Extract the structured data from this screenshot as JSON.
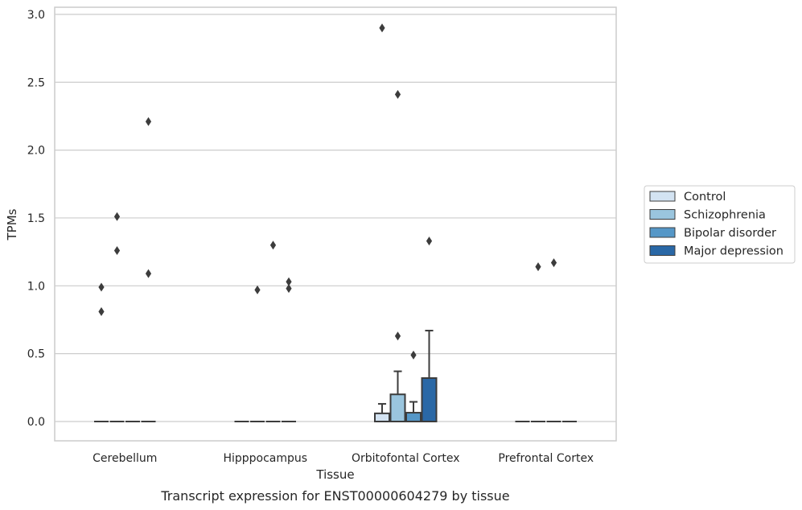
{
  "chart_data": {
    "type": "box",
    "xlabel": "Tissue",
    "ylabel": "TPMs",
    "caption": "Transcript expression for ENST00000604279 by tissue",
    "ylim": [
      -0.14,
      3.05
    ],
    "yticks": [
      0.0,
      0.5,
      1.0,
      1.5,
      2.0,
      2.5,
      3.0
    ],
    "ytick_labels": [
      "0.0",
      "0.5",
      "1.0",
      "1.5",
      "2.0",
      "2.5",
      "3.0"
    ],
    "grid": true,
    "legend_placement": "right",
    "categories": [
      "Cerebellum",
      "Hipppocampus",
      "Orbitofontal Cortex",
      "Prefrontal Cortex"
    ],
    "series": [
      {
        "name": "Control",
        "color": "#d3e3f2",
        "boxes": [
          {
            "q1": 0,
            "median": 0,
            "q3": 0,
            "whisker_low": 0,
            "whisker_high": 0,
            "outliers": [
              0.99,
              0.81
            ]
          },
          {
            "q1": 0,
            "median": 0,
            "q3": 0,
            "whisker_low": 0,
            "whisker_high": 0,
            "outliers": []
          },
          {
            "q1": 0,
            "median": 0,
            "q3": 0.06,
            "whisker_low": 0,
            "whisker_high": 0.13,
            "outliers": [
              2.9
            ]
          },
          {
            "q1": 0,
            "median": 0,
            "q3": 0,
            "whisker_low": 0,
            "whisker_high": 0,
            "outliers": []
          }
        ]
      },
      {
        "name": "Schizophrenia",
        "color": "#9ac5de",
        "boxes": [
          {
            "q1": 0,
            "median": 0,
            "q3": 0,
            "whisker_low": 0,
            "whisker_high": 0,
            "outliers": [
              1.51,
              1.26
            ]
          },
          {
            "q1": 0,
            "median": 0,
            "q3": 0,
            "whisker_low": 0,
            "whisker_high": 0,
            "outliers": [
              0.97
            ]
          },
          {
            "q1": 0,
            "median": 0,
            "q3": 0.2,
            "whisker_low": 0,
            "whisker_high": 0.37,
            "outliers": [
              2.41,
              0.63
            ]
          },
          {
            "q1": 0,
            "median": 0,
            "q3": 0,
            "whisker_low": 0,
            "whisker_high": 0,
            "outliers": [
              1.14
            ]
          }
        ]
      },
      {
        "name": "Bipolar disorder",
        "color": "#5597c7",
        "boxes": [
          {
            "q1": 0,
            "median": 0,
            "q3": 0,
            "whisker_low": 0,
            "whisker_high": 0,
            "outliers": []
          },
          {
            "q1": 0,
            "median": 0,
            "q3": 0,
            "whisker_low": 0,
            "whisker_high": 0,
            "outliers": [
              1.3
            ]
          },
          {
            "q1": 0,
            "median": 0,
            "q3": 0.065,
            "whisker_low": 0,
            "whisker_high": 0.145,
            "outliers": [
              0.49
            ]
          },
          {
            "q1": 0,
            "median": 0,
            "q3": 0,
            "whisker_low": 0,
            "whisker_high": 0,
            "outliers": [
              1.17
            ]
          }
        ]
      },
      {
        "name": "Major depression",
        "color": "#2a68a6",
        "boxes": [
          {
            "q1": 0,
            "median": 0,
            "q3": 0,
            "whisker_low": 0,
            "whisker_high": 0,
            "outliers": [
              2.21,
              1.09
            ]
          },
          {
            "q1": 0,
            "median": 0,
            "q3": 0,
            "whisker_low": 0,
            "whisker_high": 0,
            "outliers": [
              1.03,
              0.98
            ]
          },
          {
            "q1": 0,
            "median": 0,
            "q3": 0.32,
            "whisker_low": 0,
            "whisker_high": 0.67,
            "outliers": [
              1.33
            ]
          },
          {
            "q1": 0,
            "median": 0,
            "q3": 0,
            "whisker_low": 0,
            "whisker_high": 0,
            "outliers": []
          }
        ]
      }
    ]
  }
}
